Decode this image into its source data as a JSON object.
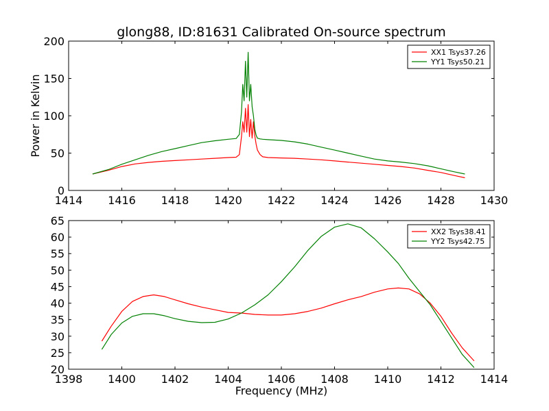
{
  "title": "glong88, ID:81631 Calibrated On-source spectrum",
  "chart_data": [
    {
      "type": "line",
      "title": "glong88, ID:81631 Calibrated On-source spectrum",
      "xlabel": "",
      "ylabel": "Power in Kelvin",
      "xlim": [
        1414,
        1430
      ],
      "ylim": [
        0,
        200
      ],
      "xticks": [
        1414,
        1416,
        1418,
        1420,
        1422,
        1424,
        1426,
        1428,
        1430
      ],
      "yticks": [
        0,
        50,
        100,
        150,
        200
      ],
      "legend_position": "top-right",
      "series": [
        {
          "name": "XX1 Tsys37.26",
          "color": "#ff0000",
          "x": [
            1414.9,
            1415.5,
            1416.0,
            1416.5,
            1417.0,
            1417.5,
            1418.0,
            1418.5,
            1419.0,
            1419.5,
            1420.0,
            1420.3,
            1420.42,
            1420.5,
            1420.55,
            1420.6,
            1420.65,
            1420.7,
            1420.75,
            1420.8,
            1420.85,
            1420.9,
            1420.95,
            1421.0,
            1421.05,
            1421.1,
            1421.2,
            1421.3,
            1421.5,
            1422.0,
            1422.5,
            1423.0,
            1423.5,
            1424.0,
            1424.5,
            1425.0,
            1425.5,
            1426.0,
            1426.5,
            1427.0,
            1427.5,
            1428.0,
            1428.5,
            1428.9
          ],
          "y": [
            22,
            27,
            32,
            35.5,
            37.5,
            39,
            40,
            41,
            42,
            43,
            44,
            44.5,
            48,
            72,
            92,
            78,
            110,
            78,
            115,
            72,
            95,
            70,
            92,
            73,
            62,
            54,
            48,
            45,
            44,
            43.5,
            43,
            42,
            41,
            39.5,
            38,
            36.5,
            35,
            33.5,
            32,
            30,
            27,
            24,
            20,
            17
          ]
        },
        {
          "name": "YY1 Tsys50.21",
          "color": "#008000",
          "x": [
            1414.9,
            1415.5,
            1416.0,
            1416.5,
            1417.0,
            1417.5,
            1418.0,
            1418.5,
            1419.0,
            1419.5,
            1420.0,
            1420.3,
            1420.42,
            1420.5,
            1420.55,
            1420.6,
            1420.65,
            1420.7,
            1420.75,
            1420.8,
            1420.85,
            1420.9,
            1420.95,
            1421.0,
            1421.05,
            1421.1,
            1421.2,
            1421.3,
            1421.5,
            1422.0,
            1422.5,
            1423.0,
            1423.5,
            1424.0,
            1424.5,
            1425.0,
            1425.5,
            1426.0,
            1426.5,
            1427.0,
            1427.5,
            1428.0,
            1428.5,
            1428.9
          ],
          "y": [
            22,
            28,
            35,
            41,
            47,
            52,
            56,
            60,
            64,
            66.5,
            68.5,
            69.5,
            75,
            105,
            142,
            120,
            173,
            125,
            185,
            120,
            142,
            112,
            100,
            82,
            74,
            70,
            69,
            68.5,
            68,
            67,
            65,
            62,
            58,
            54,
            50,
            46,
            42,
            39.5,
            38,
            36,
            33,
            29,
            25,
            22
          ]
        }
      ]
    },
    {
      "type": "line",
      "title": "",
      "xlabel": "Frequency (MHz)",
      "ylabel": "",
      "xlim": [
        1398,
        1414
      ],
      "ylim": [
        20,
        65
      ],
      "xticks": [
        1398,
        1400,
        1402,
        1404,
        1406,
        1408,
        1410,
        1412,
        1414
      ],
      "yticks": [
        20,
        25,
        30,
        35,
        40,
        45,
        50,
        55,
        60,
        65
      ],
      "legend_position": "top-right",
      "series": [
        {
          "name": "XX2 Tsys38.41",
          "color": "#ff0000",
          "x": [
            1399.25,
            1399.6,
            1400.0,
            1400.4,
            1400.8,
            1401.2,
            1401.6,
            1402.0,
            1402.5,
            1403.0,
            1403.5,
            1404.0,
            1404.5,
            1405.0,
            1405.5,
            1406.0,
            1406.5,
            1407.0,
            1407.5,
            1408.0,
            1408.5,
            1409.0,
            1409.5,
            1410.0,
            1410.4,
            1410.8,
            1411.2,
            1411.6,
            1412.0,
            1412.4,
            1412.8,
            1413.25
          ],
          "y": [
            28.5,
            33,
            37.5,
            40.5,
            42,
            42.5,
            42,
            41,
            39.8,
            38.8,
            38,
            37.2,
            37,
            36.6,
            36.4,
            36.4,
            36.8,
            37.5,
            38.5,
            39.8,
            41,
            42,
            43.3,
            44.3,
            44.6,
            44.3,
            42.8,
            40,
            36,
            31,
            26.5,
            22.5
          ]
        },
        {
          "name": "YY2 Tsys42.75",
          "color": "#008000",
          "x": [
            1399.25,
            1399.6,
            1400.0,
            1400.4,
            1400.8,
            1401.2,
            1401.6,
            1402.0,
            1402.5,
            1403.0,
            1403.5,
            1404.0,
            1404.5,
            1405.0,
            1405.5,
            1406.0,
            1406.5,
            1407.0,
            1407.5,
            1408.0,
            1408.5,
            1409.0,
            1409.5,
            1410.0,
            1410.4,
            1410.8,
            1411.2,
            1411.6,
            1412.0,
            1412.4,
            1412.8,
            1413.25
          ],
          "y": [
            26,
            30.5,
            34,
            36,
            36.8,
            36.8,
            36.2,
            35.3,
            34.5,
            34.1,
            34.2,
            35.2,
            37,
            39.5,
            42.5,
            46.5,
            51,
            56,
            60.2,
            63,
            64,
            62.8,
            59.5,
            55.5,
            52,
            47.5,
            43.5,
            39.5,
            34.5,
            29.5,
            24.5,
            20.5
          ]
        }
      ]
    }
  ]
}
